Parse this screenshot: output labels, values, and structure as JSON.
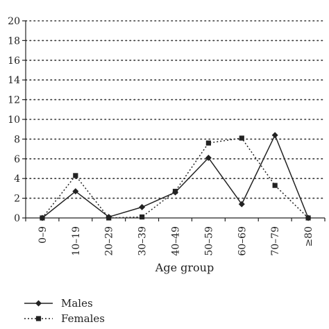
{
  "chart_data": {
    "type": "line",
    "xlabel": "Age group",
    "ylabel": "",
    "categories": [
      "0–9",
      "10–19",
      "20–29",
      "30–39",
      "40–49",
      "50–59",
      "60–69",
      "70–79",
      "≥80"
    ],
    "ylim": [
      0,
      20
    ],
    "yticks": [
      0,
      2,
      4,
      6,
      8,
      10,
      12,
      14,
      16,
      18,
      20
    ],
    "grid": "horizontal dotted",
    "legend_position": "bottom-left",
    "series": [
      {
        "name": "Males",
        "values": [
          0,
          2.7,
          0.1,
          1.1,
          2.6,
          6.1,
          1.4,
          8.4,
          0
        ],
        "line_style": "solid",
        "marker": "diamond",
        "color": "#222222"
      },
      {
        "name": "Females",
        "values": [
          0,
          4.3,
          0,
          0.1,
          2.7,
          7.6,
          8.1,
          3.3,
          0
        ],
        "line_style": "dotted",
        "marker": "square",
        "color": "#222222"
      }
    ]
  }
}
